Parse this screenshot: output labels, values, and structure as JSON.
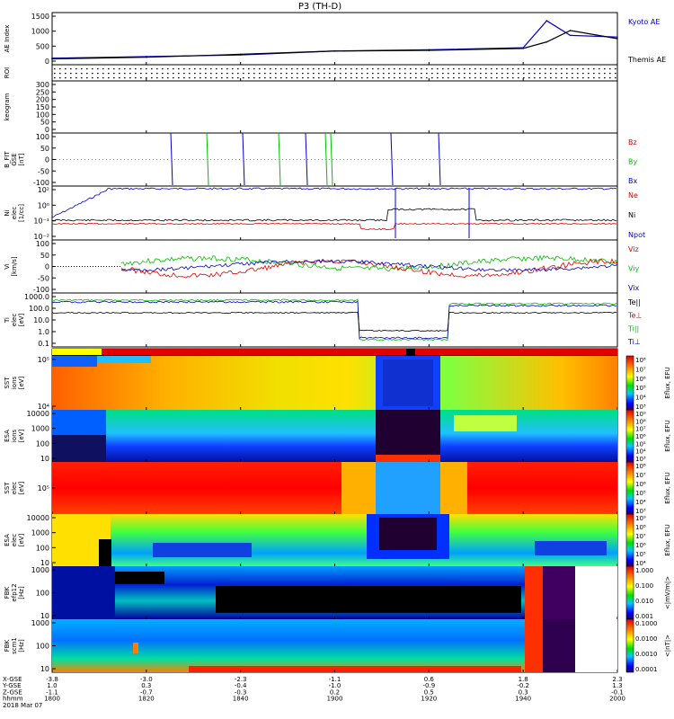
{
  "title": "P3 (TH-D)",
  "colors": {
    "kyoto": "#0000cc",
    "themis": "#000000",
    "red": "#e00000",
    "green": "#00c000",
    "blue": "#0000cc"
  },
  "panels": [
    {
      "ylabel": [
        "AE Index"
      ],
      "ticks": [
        "1500",
        "1000",
        "500",
        "0"
      ],
      "legend": [
        {
          "text": "Kyoto AE",
          "color": "#0000cc"
        },
        {
          "text": "Themis AE",
          "color": "#000000"
        }
      ]
    },
    {
      "ylabel": [
        "ROI"
      ],
      "ticks": [],
      "legend": []
    },
    {
      "ylabel": [
        "keogram"
      ],
      "ticks": [
        "300",
        "250",
        "200",
        "150",
        "100",
        "50",
        "0"
      ],
      "legend": []
    },
    {
      "ylabel": [
        "B_FIT",
        "GSE",
        "[nT]"
      ],
      "ticks": [
        "100",
        "50",
        "0",
        "-50",
        "-100"
      ],
      "legend": [
        {
          "text": "Bz",
          "color": "#e00000"
        },
        {
          "text": "By",
          "color": "#00c000"
        },
        {
          "text": "Bx",
          "color": "#0000cc"
        }
      ]
    },
    {
      "ylabel": [
        "Ni",
        "elec",
        "[1/cc]"
      ],
      "ticks": [
        "10²",
        "10⁰",
        "10⁻¹",
        "10⁻²"
      ],
      "legend": [
        {
          "text": "Ne",
          "color": "#e00000"
        },
        {
          "text": "Ni",
          "color": "#000000"
        },
        {
          "text": "Npot",
          "color": "#0000cc"
        }
      ]
    },
    {
      "ylabel": [
        "Vi",
        "[km/s]"
      ],
      "ticks": [
        "100",
        "50",
        "0",
        "-50",
        "-100"
      ],
      "legend": [
        {
          "text": "Viz",
          "color": "#e00000"
        },
        {
          "text": "Viy",
          "color": "#00c000"
        },
        {
          "text": "Vix",
          "color": "#0000cc"
        }
      ]
    },
    {
      "ylabel": [
        "Ti",
        "elec",
        "[eV]"
      ],
      "ticks": [
        "1000.0",
        "100.0",
        "10.0",
        "1.0",
        "0.1"
      ],
      "legend": [
        {
          "text": "Te||",
          "color": "#000000"
        },
        {
          "text": "Te⊥",
          "color": "#e00000"
        },
        {
          "text": "Ti||",
          "color": "#00c000"
        },
        {
          "text": "Ti⊥",
          "color": "#0000cc"
        }
      ]
    },
    {
      "ylabel": [
        "SST",
        "ions",
        "[eV]"
      ],
      "ticks": [
        "10⁵",
        "10⁴"
      ],
      "legend": []
    },
    {
      "ylabel": [
        "ESA",
        "ions",
        "[eV]"
      ],
      "ticks": [
        "10000",
        "1000",
        "100",
        "10"
      ],
      "legend": []
    },
    {
      "ylabel": [
        "SST",
        "elec",
        "[eV]"
      ],
      "ticks": [
        "10⁵"
      ],
      "legend": []
    },
    {
      "ylabel": [
        "ESA",
        "elec",
        "[eV]"
      ],
      "ticks": [
        "10000",
        "1000",
        "100",
        "10"
      ],
      "legend": []
    },
    {
      "ylabel": [
        "FBK",
        "efp12",
        "[Hz]"
      ],
      "ticks": [
        "1000",
        "100",
        "10"
      ],
      "legend": []
    },
    {
      "ylabel": [
        "FBK",
        "scm1",
        "[Hz]"
      ],
      "ticks": [
        "1000",
        "100",
        "10"
      ],
      "legend": []
    }
  ],
  "colorbars": [
    {
      "ticks": [
        "10⁸",
        "10⁷",
        "10⁶",
        "10⁵",
        "10⁴",
        "10³"
      ],
      "label": "Eflux, EFU"
    },
    {
      "ticks": [
        "10⁹",
        "10⁸",
        "10⁷",
        "10⁶",
        "10⁵",
        "10⁴",
        "10³"
      ],
      "label": "Eflux, EFU"
    },
    {
      "ticks": [
        "10⁸",
        "10⁷",
        "10⁶",
        "10⁵",
        "10⁴",
        "10³"
      ],
      "label": "Eflux, EFU"
    },
    {
      "ticks": [
        "10⁹",
        "10⁸",
        "10⁷",
        "10⁶",
        "10⁵",
        "10⁴"
      ],
      "label": "Eflux, EFU"
    },
    {
      "ticks": [
        "1.000",
        "0.100",
        "0.010",
        "0.001"
      ],
      "label": "<|mV/m|>"
    },
    {
      "ticks": [
        "0.1000",
        "0.0100",
        "0.0010",
        "0.0001"
      ],
      "label": "<|nT|>"
    }
  ],
  "footer": {
    "rowlabels": [
      "X-GSE",
      "Y-GSE",
      "Z-GSE",
      "hhmm",
      "2018 Mar 07"
    ],
    "columns": [
      [
        "-3.8",
        "1.0",
        "-1.1",
        "1800"
      ],
      [
        "-3.0",
        "0.3",
        "-0.7",
        "1820"
      ],
      [
        "-2.3",
        "-0.4",
        "-0.3",
        "1840"
      ],
      [
        "-1.1",
        "-1.0",
        "0.2",
        "1900"
      ],
      [
        "0.6",
        "-0.9",
        "0.5",
        "1920"
      ],
      [
        "1.8",
        "-0.2",
        "0.3",
        "1940"
      ],
      [
        "2.3",
        "1.3",
        "-0.1",
        "2000"
      ]
    ]
  },
  "chart_data": {
    "type": "line",
    "title": "P3 (TH-D)",
    "x": [
      "1800",
      "1820",
      "1840",
      "1900",
      "1920",
      "1940",
      "2000"
    ],
    "xlabel": "hhmm",
    "series": [
      {
        "name": "Kyoto AE",
        "x": [
          "1800",
          "1820",
          "1840",
          "1900",
          "1920",
          "1940",
          "1945",
          "1950",
          "2000"
        ],
        "values": [
          200,
          250,
          300,
          420,
          460,
          520,
          1350,
          900,
          850
        ]
      },
      {
        "name": "Themis AE",
        "x": [
          "1800",
          "1820",
          "1840",
          "1900",
          "1920",
          "1940",
          "1945",
          "1950",
          "2000"
        ],
        "values": [
          180,
          230,
          320,
          420,
          440,
          500,
          700,
          1050,
          800
        ]
      }
    ],
    "ylabel": "AE Index",
    "ylim": [
      0,
      1600
    ]
  }
}
